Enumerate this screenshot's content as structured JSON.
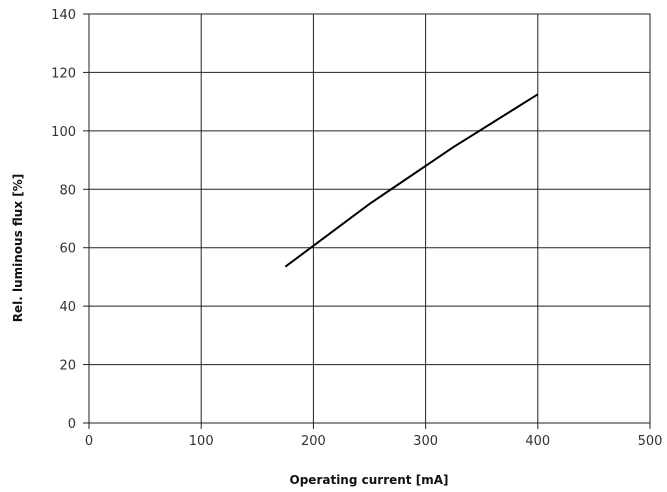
{
  "chart_data": {
    "type": "line",
    "title": "",
    "xlabel": "Operating current [mA]",
    "ylabel": "Rel. luminous flux [%]",
    "xlim": [
      0,
      500
    ],
    "ylim": [
      0,
      140
    ],
    "xticks": [
      0,
      100,
      200,
      300,
      400,
      500
    ],
    "yticks": [
      0,
      20,
      40,
      60,
      80,
      100,
      120,
      140
    ],
    "grid": true,
    "series": [
      {
        "color": "#000000",
        "points": [
          [
            175,
            53.5
          ],
          [
            250,
            75
          ],
          [
            325,
            94.5
          ],
          [
            400,
            112.5
          ]
        ]
      }
    ]
  }
}
